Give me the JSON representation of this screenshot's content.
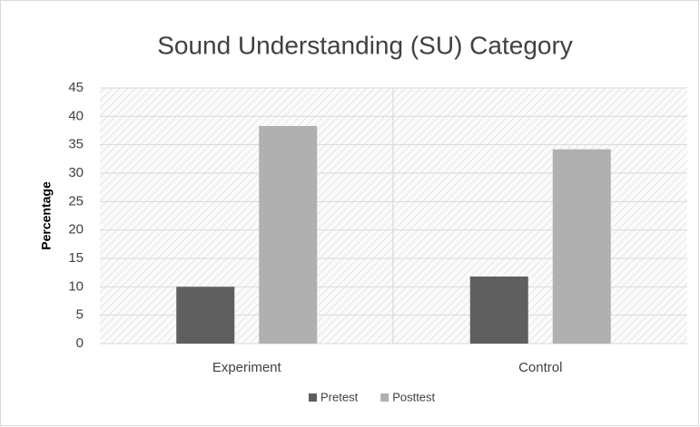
{
  "chart_data": {
    "type": "bar",
    "title": "Sound Understanding (SU) Category",
    "y_label": "Percentage",
    "categories": [
      "Experiment",
      "Control"
    ],
    "series": [
      {
        "name": "Pretest",
        "color": "#5f5f5f",
        "values": [
          10,
          11.8
        ]
      },
      {
        "name": "Posttest",
        "color": "#b0b0b0",
        "values": [
          38.3,
          34.2
        ]
      }
    ],
    "ylim": [
      0,
      45
    ],
    "yticks": [
      0,
      5,
      10,
      15,
      20,
      25,
      30,
      35,
      40,
      45
    ],
    "grid": true,
    "legend": "bottom"
  }
}
